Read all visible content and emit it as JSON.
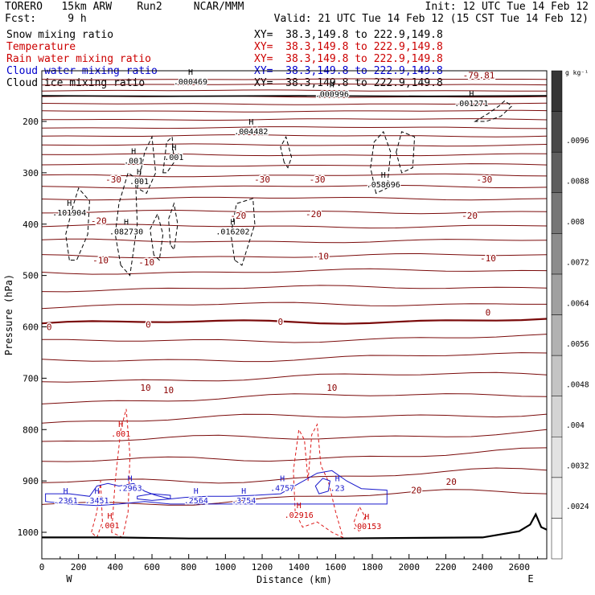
{
  "header": {
    "model": "TORERO   15km ARW    Run2     NCAR/MMM",
    "init": "Init: 12 UTC Tue 14 Feb 12",
    "fcst": "Fcst:     9 h",
    "valid": "Valid: 21 UTC Tue 14 Feb 12 (15 CST Tue 14 Feb 12)"
  },
  "legend": [
    {
      "field": "Snow mixing ratio",
      "xy": "XY=  38.3,149.8 to 222.9,149.8",
      "color": "#000000"
    },
    {
      "field": "Temperature",
      "xy": "XY=  38.3,149.8 to 222.9,149.8",
      "color": "#cc0000"
    },
    {
      "field": "Rain water mixing ratio",
      "xy": "XY=  38.3,149.8 to 222.9,149.8",
      "color": "#cc0000"
    },
    {
      "field": "Cloud water mixing ratio",
      "xy": "XY=  38.3,149.8 to 222.9,149.8",
      "color": "#0000cc"
    },
    {
      "field": "Cloud ice mixing ratio",
      "xy": "XY=  38.3,149.8 to 222.9,149.8",
      "color": "#000000"
    }
  ],
  "chart_data": {
    "type": "contour cross-section",
    "xlabel": "Distance (km)",
    "ylabel": "Pressure (hPa)",
    "xlim": [
      0,
      2750
    ],
    "ylim_hpa": [
      1050,
      100
    ],
    "x_ticks": [
      0,
      200,
      400,
      600,
      800,
      1000,
      1200,
      1400,
      1600,
      1800,
      2000,
      2200,
      2400,
      2600
    ],
    "x_tick_labels": [
      "0",
      "200",
      "400",
      "600",
      "800",
      "1000",
      "1200",
      "1400",
      "1600",
      "1800",
      "2000",
      "2200",
      "2400",
      "2600"
    ],
    "y_ticks": [
      200,
      300,
      400,
      500,
      600,
      700,
      800,
      900,
      1000
    ],
    "y_tick_labels": [
      "200",
      "300",
      "400",
      "500",
      "600",
      "700",
      "800",
      "900",
      "1000"
    ],
    "end_labels": {
      "west": "W",
      "east": "E"
    },
    "colorbar": {
      "unit": "g kg⁻¹",
      "ticks": [
        ".0024",
        ".0032",
        ".004",
        ".0048",
        ".0056",
        ".0064",
        ".0072",
        ".008",
        ".0088",
        ".0096"
      ],
      "colors": [
        "#ffffff",
        "#eeeeee",
        "#e2e2e2",
        "#d4d4d4",
        "#c4c4c4",
        "#b2b2b2",
        "#a0a0a0",
        "#8c8c8c",
        "#767676",
        "#5e5e5e",
        "#484848",
        "#343434"
      ]
    },
    "temperature_labels": [
      {
        "text": "-79.81",
        "x": 2380,
        "p": 110
      },
      {
        "text": "-30",
        "x": 390,
        "p": 313
      },
      {
        "text": "-30",
        "x": 1200,
        "p": 313
      },
      {
        "text": "-30",
        "x": 1500,
        "p": 313
      },
      {
        "text": "-30",
        "x": 2410,
        "p": 313
      },
      {
        "text": "-20",
        "x": 310,
        "p": 393
      },
      {
        "text": "-20",
        "x": 1070,
        "p": 383
      },
      {
        "text": "-20",
        "x": 1480,
        "p": 380
      },
      {
        "text": "-20",
        "x": 2330,
        "p": 383
      },
      {
        "text": "-10",
        "x": 320,
        "p": 470
      },
      {
        "text": "-10",
        "x": 570,
        "p": 474
      },
      {
        "text": "-10",
        "x": 1520,
        "p": 462
      },
      {
        "text": "-10",
        "x": 2430,
        "p": 466
      },
      {
        "text": "0",
        "x": 40,
        "p": 600
      },
      {
        "text": "0",
        "x": 580,
        "p": 595
      },
      {
        "text": "0",
        "x": 1300,
        "p": 590
      },
      {
        "text": "0",
        "x": 2430,
        "p": 572
      },
      {
        "text": "10",
        "x": 565,
        "p": 718
      },
      {
        "text": "10",
        "x": 690,
        "p": 723
      },
      {
        "text": "10",
        "x": 1580,
        "p": 718
      },
      {
        "text": "20",
        "x": 2040,
        "p": 918
      },
      {
        "text": "20",
        "x": 2230,
        "p": 901
      }
    ],
    "ice_maxima": [
      {
        "text": ".000469",
        "x": 810,
        "p": 128
      },
      {
        "text": ".000996",
        "x": 1580,
        "p": 152
      },
      {
        "text": ".001271",
        "x": 2340,
        "p": 170
      },
      {
        "text": ".004482",
        "x": 1140,
        "p": 225
      },
      {
        "text": ".001",
        "x": 500,
        "p": 282
      },
      {
        "text": ".001",
        "x": 720,
        "p": 275
      },
      {
        "text": ".001",
        "x": 530,
        "p": 322
      },
      {
        "text": ".058696",
        "x": 1860,
        "p": 328
      },
      {
        "text": ".101904",
        "x": 150,
        "p": 383
      },
      {
        "text": ".082730",
        "x": 460,
        "p": 420
      },
      {
        "text": ".016202",
        "x": 1040,
        "p": 420
      }
    ],
    "rain_maxima": [
      {
        "text": ".001",
        "x": 430,
        "p": 814
      },
      {
        "text": ".02916",
        "x": 1400,
        "p": 972
      },
      {
        "text": ".00153",
        "x": 1770,
        "p": 994
      },
      {
        "text": ".001",
        "x": 370,
        "p": 992
      }
    ],
    "cloud_water_maxima": [
      {
        "text": ".2361",
        "x": 130,
        "p": 944
      },
      {
        "text": ".3451",
        "x": 300,
        "p": 944
      },
      {
        "text": ".2963",
        "x": 480,
        "p": 919
      },
      {
        "text": ".2564",
        "x": 840,
        "p": 944
      },
      {
        "text": ".3754",
        "x": 1100,
        "p": 944
      },
      {
        "text": ".4757",
        "x": 1310,
        "p": 919
      },
      {
        "text": ".23",
        "x": 1610,
        "p": 919
      }
    ]
  }
}
